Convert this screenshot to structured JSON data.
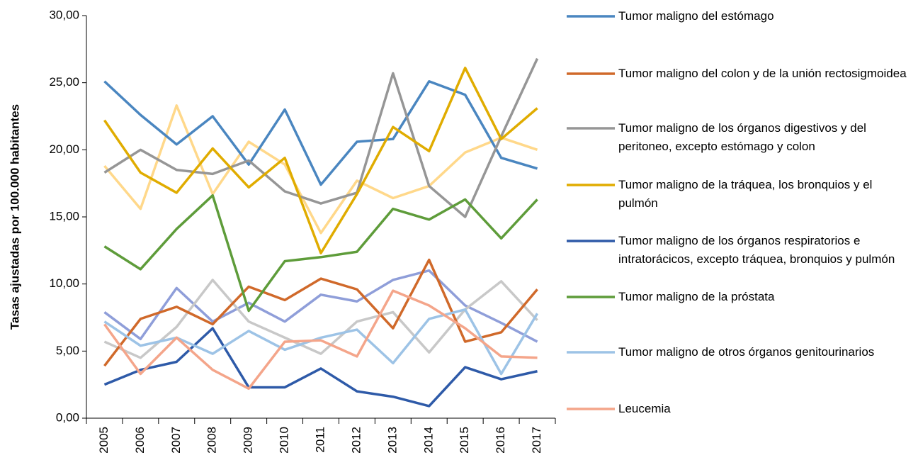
{
  "chart_data": {
    "type": "line",
    "y_label": "Tasas ajustadas por 100.000 habitantes",
    "categories": [
      "2005",
      "2006",
      "2007",
      "2008",
      "2009",
      "2010",
      "2011",
      "2012",
      "2013",
      "2014",
      "2015",
      "2016",
      "2017"
    ],
    "ylim": [
      0,
      30
    ],
    "yticks": [
      {
        "value": 0,
        "label": "0,00"
      },
      {
        "value": 5,
        "label": "5,00"
      },
      {
        "value": 10,
        "label": "10,00"
      },
      {
        "value": 15,
        "label": "15,00"
      },
      {
        "value": 20,
        "label": "20,00"
      },
      {
        "value": 25,
        "label": "25,00"
      },
      {
        "value": 30,
        "label": "30,00"
      }
    ],
    "series": [
      {
        "color": "#8f9ed9",
        "values": [
          7.9,
          5.9,
          9.7,
          7.2,
          8.6,
          7.2,
          9.2,
          8.7,
          10.3,
          11.0,
          8.4,
          7.1,
          5.7
        ]
      },
      {
        "color": "#c8c8c8",
        "values": [
          5.7,
          4.5,
          6.8,
          10.3,
          7.2,
          6.0,
          4.8,
          7.2,
          7.9,
          4.9,
          8.1,
          10.2,
          7.3
        ]
      },
      {
        "color": "#ffd88a",
        "values": [
          18.8,
          15.6,
          23.3,
          16.7,
          20.6,
          18.9,
          13.8,
          17.7,
          16.4,
          17.3,
          19.8,
          20.9,
          20.0
        ]
      },
      {
        "name": "Tumor maligno del estómago",
        "color": "#4a86c0",
        "values": [
          25.1,
          22.6,
          20.4,
          22.5,
          18.9,
          23.0,
          17.4,
          20.6,
          20.8,
          25.1,
          24.1,
          19.4,
          18.6
        ]
      },
      {
        "name": "Tumor maligno del colon y de la unión rectosigmoidea",
        "color": "#d0692a",
        "values": [
          3.9,
          7.4,
          8.3,
          7.0,
          9.8,
          8.8,
          10.4,
          9.6,
          6.7,
          11.8,
          5.7,
          6.4,
          9.6
        ]
      },
      {
        "name": "Tumor maligno de los órganos digestivos y del peritoneo, excepto estómago y colon",
        "color": "#969696",
        "values": [
          18.3,
          20.0,
          18.5,
          18.2,
          19.2,
          16.9,
          16.0,
          16.8,
          25.7,
          17.3,
          15.0,
          21.0,
          26.8
        ]
      },
      {
        "name": "Tumor maligno de la tráquea, los bronquios y el pulmón",
        "color": "#e0ac00",
        "values": [
          22.2,
          18.3,
          16.8,
          20.1,
          17.2,
          19.4,
          12.3,
          16.7,
          21.7,
          19.9,
          26.1,
          20.8,
          23.1
        ]
      },
      {
        "name": "Tumor maligno de los órganos respiratorios e intratorácicos, excepto tráquea, bronquios y pulmón",
        "color": "#2e5aa8",
        "values": [
          2.5,
          3.6,
          4.2,
          6.7,
          2.3,
          2.3,
          3.7,
          2.0,
          1.6,
          0.9,
          3.8,
          2.9,
          3.5
        ]
      },
      {
        "name": "Tumor maligno de la próstata",
        "color": "#5e9c3a",
        "values": [
          12.8,
          11.1,
          14.1,
          16.6,
          8.0,
          11.7,
          12.0,
          12.4,
          15.6,
          14.8,
          16.3,
          13.4,
          16.3
        ]
      },
      {
        "name": "Tumor maligno de otros órganos genitourinarios",
        "color": "#9dc3e6",
        "values": [
          7.2,
          5.4,
          6.0,
          4.8,
          6.5,
          5.1,
          6.0,
          6.6,
          4.1,
          7.4,
          8.1,
          3.3,
          7.8
        ]
      },
      {
        "name": "Leucemia",
        "color": "#f4a58a",
        "values": [
          7.0,
          3.3,
          6.0,
          3.6,
          2.2,
          5.7,
          5.8,
          4.6,
          9.5,
          8.4,
          6.7,
          4.6,
          4.5
        ]
      }
    ]
  }
}
